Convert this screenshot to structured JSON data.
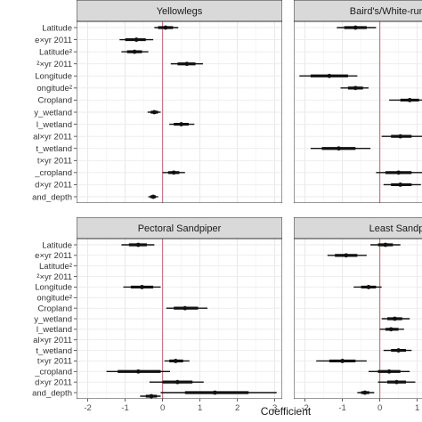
{
  "chart_data": {
    "type": "forest",
    "xlabel": "Coefficient",
    "xlim": [
      -2.3,
      3.2
    ],
    "xticks": [
      -2,
      -1,
      0,
      1,
      2,
      3
    ],
    "ref_line": 0,
    "ref_color": "#c9798a",
    "ylabels": [
      "Latitude",
      "e×yr 2011",
      "Latitude²",
      "²×yr 2011",
      "Longitude",
      "ongitude²",
      "Cropland",
      "y_wetland",
      "l_wetland",
      "al×yr 2011",
      "t_wetland",
      "t×yr 2011",
      "_cropland",
      "d×yr 2011",
      "and_depth"
    ],
    "panels": [
      {
        "title": "Yellowlegs",
        "points": [
          {
            "est": 0.08,
            "lo_inner": -0.12,
            "hi_inner": 0.28,
            "lo": -0.22,
            "hi": 0.42
          },
          {
            "est": -0.7,
            "lo_inner": -1.0,
            "hi_inner": -0.45,
            "lo": -1.15,
            "hi": -0.25
          },
          {
            "est": -0.75,
            "lo_inner": -0.95,
            "hi_inner": -0.55,
            "lo": -1.1,
            "hi": -0.38
          },
          {
            "est": 0.65,
            "lo_inner": 0.4,
            "hi_inner": 0.88,
            "lo": 0.22,
            "hi": 1.08
          },
          null,
          null,
          null,
          {
            "est": -0.22,
            "lo_inner": -0.32,
            "hi_inner": -0.12,
            "lo": -0.4,
            "hi": -0.05
          },
          {
            "est": 0.5,
            "lo_inner": 0.3,
            "hi_inner": 0.7,
            "lo": 0.18,
            "hi": 0.85
          },
          null,
          null,
          null,
          {
            "est": 0.3,
            "lo_inner": 0.15,
            "hi_inner": 0.45,
            "lo": 0.0,
            "hi": 0.6
          },
          null,
          {
            "est": -0.25,
            "lo_inner": -0.33,
            "hi_inner": -0.18,
            "lo": -0.38,
            "hi": -0.12
          }
        ]
      },
      {
        "title": "Baird's/White-rumped",
        "points": [
          {
            "est": -0.65,
            "lo_inner": -0.95,
            "hi_inner": -0.35,
            "lo": -1.15,
            "hi": -0.1
          },
          null,
          null,
          null,
          {
            "est": -1.35,
            "lo_inner": -1.85,
            "hi_inner": -0.85,
            "lo": -2.15,
            "hi": -0.6
          },
          {
            "est": -0.65,
            "lo_inner": -0.85,
            "hi_inner": -0.45,
            "lo": -1.05,
            "hi": -0.3
          },
          {
            "est": 0.8,
            "lo_inner": 0.55,
            "hi_inner": 1.05,
            "lo": 0.25,
            "hi": 1.3
          },
          null,
          null,
          {
            "est": 0.55,
            "lo_inner": 0.3,
            "hi_inner": 0.85,
            "lo": 0.05,
            "hi": 1.15
          },
          {
            "est": -1.1,
            "lo_inner": -1.55,
            "hi_inner": -0.65,
            "lo": -1.85,
            "hi": -0.25
          },
          null,
          {
            "est": 0.5,
            "lo_inner": 0.15,
            "hi_inner": 0.85,
            "lo": -0.1,
            "hi": 1.2
          },
          {
            "est": 0.55,
            "lo_inner": 0.3,
            "hi_inner": 0.85,
            "lo": 0.1,
            "hi": 1.1
          },
          null
        ]
      },
      {
        "title": "Pectoral Sandpiper",
        "points": [
          {
            "est": -0.65,
            "lo_inner": -0.9,
            "hi_inner": -0.42,
            "lo": -1.1,
            "hi": -0.22
          },
          null,
          null,
          null,
          {
            "est": -0.55,
            "lo_inner": -0.85,
            "hi_inner": -0.25,
            "lo": -1.05,
            "hi": -0.05
          },
          null,
          {
            "est": 0.6,
            "lo_inner": 0.3,
            "hi_inner": 0.95,
            "lo": 0.1,
            "hi": 1.2
          },
          null,
          null,
          null,
          null,
          {
            "est": 0.35,
            "lo_inner": 0.18,
            "hi_inner": 0.55,
            "lo": 0.05,
            "hi": 0.72
          },
          {
            "est": -0.65,
            "lo_inner": -1.2,
            "hi_inner": -0.05,
            "lo": -1.5,
            "hi": 0.2
          },
          {
            "est": 0.4,
            "lo_inner": 0.0,
            "hi_inner": 0.8,
            "lo": -0.35,
            "hi": 1.1
          },
          {
            "est": 1.4,
            "lo_inner": 0.6,
            "hi_inner": 2.3,
            "lo": -0.05,
            "hi": 3.05
          }
        ],
        "extra": [
          {
            "row": 14,
            "est": -0.3,
            "lo_inner": -0.45,
            "hi_inner": -0.15,
            "lo": -0.6,
            "hi": -0.05,
            "offset": 4
          }
        ]
      },
      {
        "title": "Least Sandp",
        "points": [
          {
            "est": 0.15,
            "lo_inner": -0.05,
            "hi_inner": 0.35,
            "lo": -0.25,
            "hi": 0.55
          },
          {
            "est": -0.9,
            "lo_inner": -1.2,
            "hi_inner": -0.6,
            "lo": -1.4,
            "hi": -0.35
          },
          null,
          null,
          {
            "est": -0.3,
            "lo_inner": -0.5,
            "hi_inner": -0.1,
            "lo": -0.7,
            "hi": 0.05
          },
          null,
          null,
          {
            "est": 0.4,
            "lo_inner": 0.2,
            "hi_inner": 0.6,
            "lo": 0.05,
            "hi": 0.8
          },
          {
            "est": 0.3,
            "lo_inner": 0.15,
            "hi_inner": 0.5,
            "lo": 0.0,
            "hi": 0.65
          },
          null,
          {
            "est": 0.5,
            "lo_inner": 0.3,
            "hi_inner": 0.7,
            "lo": 0.1,
            "hi": 0.85
          },
          {
            "est": -1.0,
            "lo_inner": -1.35,
            "hi_inner": -0.65,
            "lo": -1.7,
            "hi": -0.35
          },
          {
            "est": 0.25,
            "lo_inner": -0.05,
            "hi_inner": 0.55,
            "lo": -0.3,
            "hi": 0.8
          },
          {
            "est": 0.45,
            "lo_inner": 0.2,
            "hi_inner": 0.7,
            "lo": -0.05,
            "hi": 0.95
          },
          {
            "est": -0.4,
            "lo_inner": -0.5,
            "hi_inner": -0.28,
            "lo": -0.6,
            "hi": -0.15
          }
        ]
      }
    ]
  }
}
